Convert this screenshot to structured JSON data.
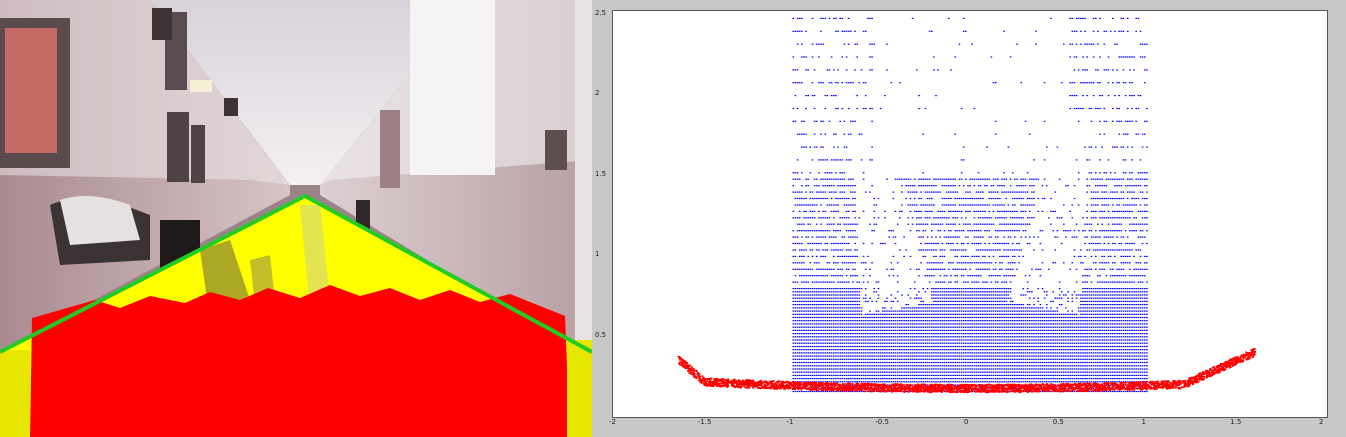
{
  "photo": {
    "description_colors": {
      "floor_red": "#ff0000",
      "floor_yellow": "#ffff00",
      "boundary_green": "#22cc22",
      "wall": "#c9a9ad",
      "ceiling": "#ece6ea"
    }
  },
  "chart_data": {
    "type": "scatter",
    "xlim": [
      -2,
      2
    ],
    "ylim": [
      0,
      2.5
    ],
    "x_ticks": [
      "-2",
      "-1.5",
      "-1",
      "-0.5",
      "0",
      "0.5",
      "1",
      "1.5",
      "2"
    ],
    "y_ticks": [
      "2.5",
      "2",
      "1.5",
      "1",
      "0.5"
    ],
    "grid": false,
    "series": [
      {
        "color": "#0000ff",
        "x_range": [
          -1,
          1
        ],
        "y_range": [
          0.15,
          2.5
        ]
      },
      {
        "color": "#ff0000",
        "x_range": [
          -1.65,
          1.6
        ],
        "y_range": [
          0.1,
          0.5
        ]
      }
    ]
  }
}
